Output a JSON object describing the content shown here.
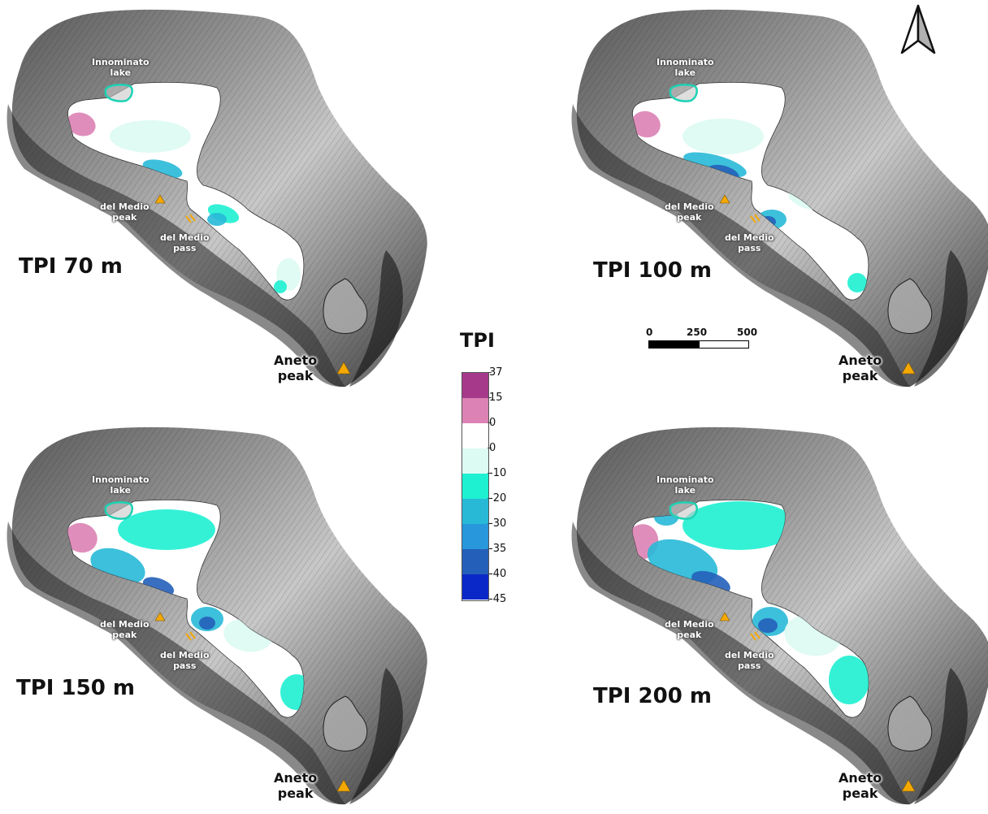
{
  "panels": [
    {
      "title": "TPI 70 m",
      "labels": {
        "lake": "Innominato\nlake",
        "peak_medio": "del Medio\npeak",
        "pass_medio": "del Medio\npass",
        "aneto": "Aneto\npeak"
      }
    },
    {
      "title": "TPI 100 m",
      "labels": {
        "lake": "Innominato\nlake",
        "peak_medio": "del Medio\npeak",
        "pass_medio": "del Medio\npass",
        "aneto": "Aneto\npeak"
      }
    },
    {
      "title": "TPI 150 m",
      "labels": {
        "lake": "Innominato\nlake",
        "peak_medio": "del Medio\npeak",
        "pass_medio": "del Medio\npass",
        "aneto": "Aneto\npeak"
      }
    },
    {
      "title": "TPI 200 m",
      "labels": {
        "lake": "Innominato\nlake",
        "peak_medio": "del Medio\npeak",
        "pass_medio": "del Medio\npass",
        "aneto": "Aneto\npeak"
      }
    }
  ],
  "legend": {
    "title": "TPI",
    "ticks": [
      "37",
      "15",
      "0",
      "0",
      "-10",
      "-20",
      "-30",
      "-35",
      "-40",
      "-45"
    ],
    "colors": [
      "#a7398a",
      "#dc82b4",
      "#ffffff",
      "#dcfbf2",
      "#1ef0d2",
      "#28b9d7",
      "#2897dc",
      "#245fb9",
      "#0a28c8"
    ]
  },
  "scale_bar": {
    "labels": [
      "0",
      "250",
      "500 m"
    ]
  },
  "colors": {
    "terrain": "#8c8c8c",
    "glacier": "#ffffff",
    "lake_outline": "#1ed2b4",
    "peak_marker": "#f5a800"
  },
  "icons": {
    "north": "north-arrow-icon",
    "peak": "triangle-peak-icon"
  }
}
